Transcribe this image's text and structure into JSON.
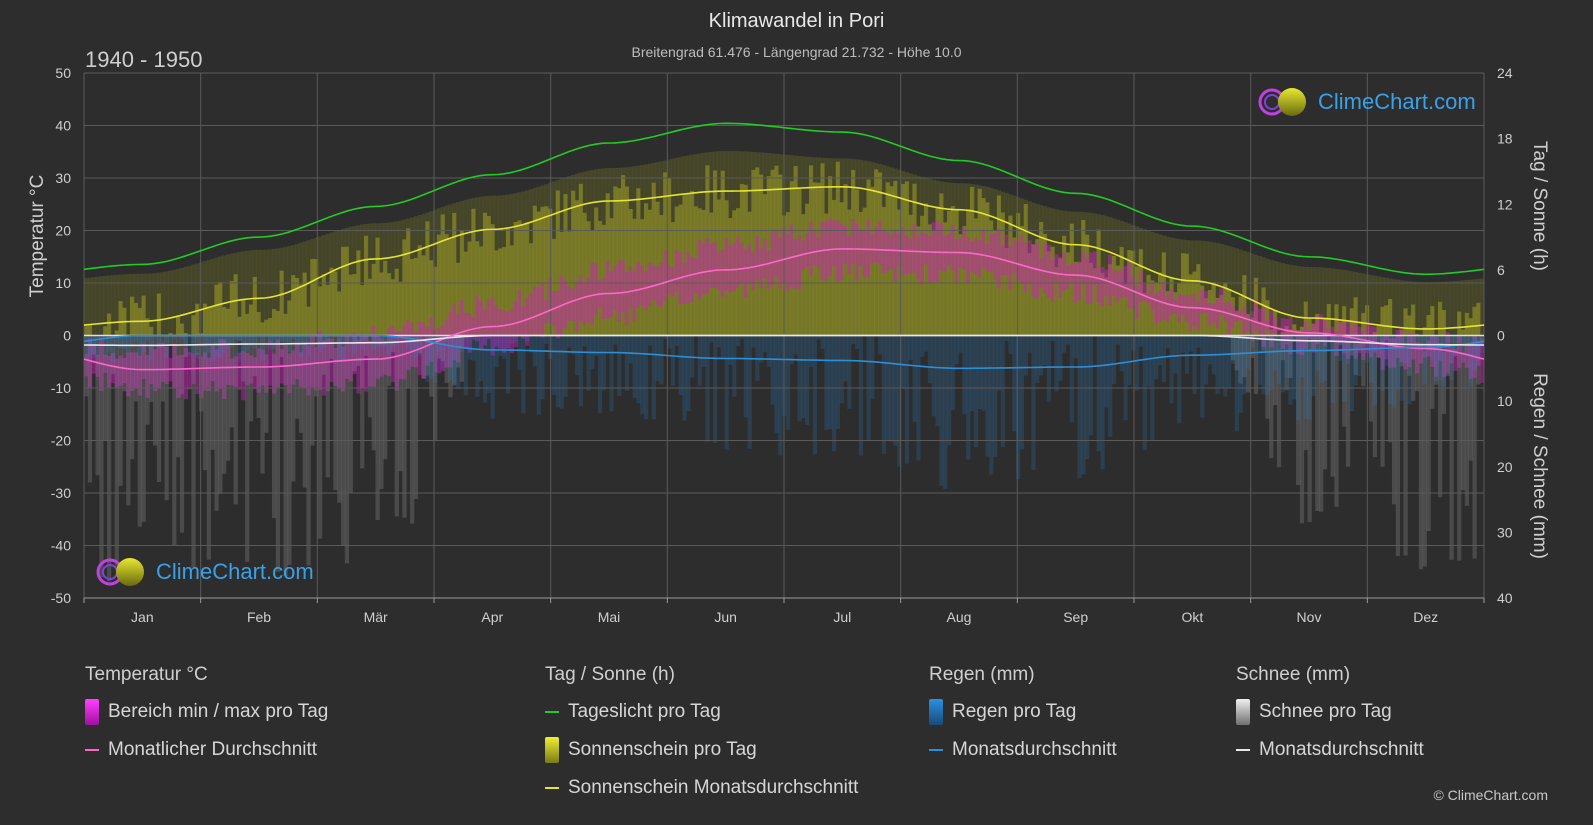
{
  "header": {
    "title": "Klimawandel in Pori",
    "subtitle": "Breitengrad 61.476 - Längengrad 21.732 - Höhe 10.0",
    "period": "1940 - 1950"
  },
  "logo": {
    "text": "ClimeChart.com"
  },
  "copyright": "© ClimeChart.com",
  "legend": {
    "temperature": {
      "title": "Temperatur °C",
      "range": "Bereich min / max pro Tag",
      "avg": "Monatlicher Durchschnitt"
    },
    "sun": {
      "title": "Tag / Sonne (h)",
      "daylight": "Tageslicht pro Tag",
      "sunshine": "Sonnenschein pro Tag",
      "sunshine_avg": "Sonnenschein Monatsdurchschnitt"
    },
    "rain": {
      "title": "Regen (mm)",
      "per_day": "Regen pro Tag",
      "avg": "Monatsdurchschnitt"
    },
    "snow": {
      "title": "Schnee (mm)",
      "per_day": "Schnee pro Tag",
      "avg": "Monatsdurchschnitt"
    }
  },
  "colors": {
    "background": "#2d2d2d",
    "daylight": "#22cc22",
    "sunshine_avg": "#e6e632",
    "sunshine_fill": "#9a9a28",
    "temp_avg": "#ff66cc",
    "temp_range": "#d020c0",
    "rain": "#2a80c8",
    "rain_avg": "#2d8fd8",
    "snow": "#9a9a9a",
    "snow_avg": "#e8e8e8",
    "grid": "#5a5a5a"
  },
  "chart_data": {
    "type": "line",
    "months": [
      "Jan",
      "Feb",
      "Mär",
      "Apr",
      "Mai",
      "Jun",
      "Jul",
      "Aug",
      "Sep",
      "Okt",
      "Nov",
      "Dez"
    ],
    "left_axis": {
      "label": "Temperatur °C",
      "min": -50,
      "max": 50,
      "ticks": [
        50,
        40,
        30,
        20,
        10,
        0,
        -10,
        -20,
        -30,
        -40,
        -50
      ]
    },
    "right_axis_top": {
      "label": "Tag / Sonne (h)",
      "min": 0,
      "max": 24,
      "ticks": [
        24,
        18,
        12,
        6,
        0
      ]
    },
    "right_axis_bottom": {
      "label": "Regen / Schnee (mm)",
      "min": 0,
      "max": 40,
      "ticks": [
        0,
        10,
        20,
        30,
        40
      ]
    },
    "series": [
      {
        "name": "Tageslicht pro Tag",
        "unit": "h",
        "values": [
          6.5,
          9.0,
          11.8,
          14.7,
          17.6,
          19.4,
          18.6,
          16.0,
          13.0,
          10.0,
          7.2,
          5.6
        ]
      },
      {
        "name": "Sonnenschein Monatsdurchschnitt",
        "unit": "h",
        "values": [
          1.3,
          3.4,
          7.0,
          9.7,
          12.3,
          13.2,
          13.6,
          11.5,
          8.3,
          5.0,
          1.6,
          0.6
        ]
      },
      {
        "name": "Monatlicher Durchschnitt",
        "unit": "°C",
        "values": [
          -6.5,
          -6.0,
          -4.5,
          1.7,
          8.0,
          12.5,
          16.5,
          15.8,
          11.5,
          5.3,
          0.5,
          -2.5
        ]
      },
      {
        "name": "Regen Monatsdurchschnitt",
        "unit": "mm",
        "values": [
          0.0,
          0.0,
          0.0,
          2.2,
          2.6,
          3.5,
          3.8,
          5.0,
          4.8,
          3.0,
          2.3,
          1.8
        ]
      },
      {
        "name": "Schnee Monatsdurchschnitt",
        "unit": "mm",
        "values": [
          1.5,
          1.3,
          1.1,
          0.0,
          0.0,
          0.0,
          0.0,
          0.0,
          0.0,
          0.0,
          0.8,
          1.4
        ]
      },
      {
        "name": "Bereich min pro Tag",
        "unit": "°C",
        "values": [
          -10,
          -10.5,
          -9,
          -2,
          3.5,
          8.5,
          12,
          11.5,
          8,
          2.5,
          -2,
          -6
        ]
      },
      {
        "name": "Bereich max pro Tag",
        "unit": "°C",
        "values": [
          -3,
          -2.5,
          0.5,
          6,
          12.5,
          17,
          21,
          20,
          15,
          8,
          2.5,
          -1
        ]
      }
    ]
  }
}
